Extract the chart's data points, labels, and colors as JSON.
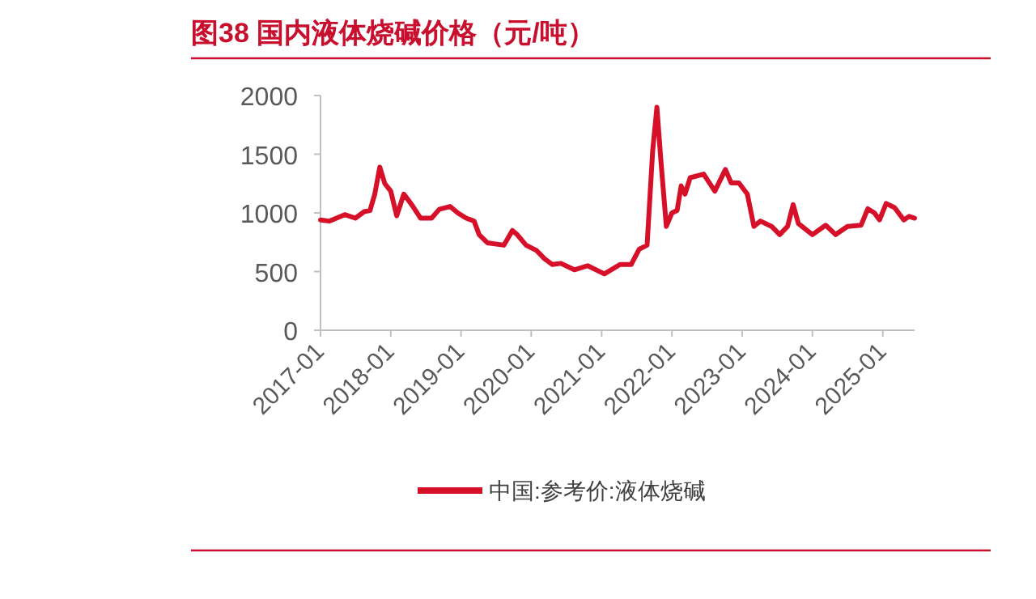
{
  "chart_data": {
    "type": "line",
    "title": "图38  国内液体烧碱价格（元/吨）",
    "xlim": [
      "2017-01-01",
      "2025-06-15"
    ],
    "xticks": [
      "2017-01",
      "2018-01",
      "2019-01",
      "2020-01",
      "2021-01",
      "2022-01",
      "2023-01",
      "2024-01",
      "2025-01"
    ],
    "ylim": [
      0,
      2000
    ],
    "yticks": [
      0,
      500,
      1000,
      1500,
      2000
    ],
    "grid": false,
    "legend": "bottom",
    "marker": "none",
    "line_style": "solid",
    "series": [
      {
        "name": "中国:参考价:液体烧碱",
        "color": "#d7102a",
        "x": [
          "2017-01-01",
          "2017-02-15",
          "2017-05-07",
          "2017-07-01",
          "2017-08-15",
          "2017-09-15",
          "2017-10-10",
          "2017-11-05",
          "2017-12-01",
          "2018-01-01",
          "2018-02-01",
          "2018-03-10",
          "2018-04-20",
          "2018-06-05",
          "2018-08-01",
          "2018-09-10",
          "2018-11-05",
          "2018-12-15",
          "2019-01-28",
          "2019-03-10",
          "2019-04-05",
          "2019-05-18",
          "2019-08-12",
          "2019-09-25",
          "2019-10-20",
          "2019-12-05",
          "2020-01-28",
          "2020-03-10",
          "2020-04-20",
          "2020-06-03",
          "2020-08-12",
          "2020-10-20",
          "2021-01-15",
          "2021-04-06",
          "2021-06-03",
          "2021-07-15",
          "2021-08-25",
          "2021-09-23",
          "2021-10-15",
          "2021-11-05",
          "2021-12-03",
          "2022-01-01",
          "2022-01-28",
          "2022-02-18",
          "2022-03-10",
          "2022-04-06",
          "2022-06-15",
          "2022-08-12",
          "2022-10-06",
          "2022-11-05",
          "2022-12-15",
          "2023-01-28",
          "2023-03-03",
          "2023-04-06",
          "2023-06-03",
          "2023-07-15",
          "2023-08-25",
          "2023-09-23",
          "2023-10-20",
          "2024-01-01",
          "2024-03-10",
          "2024-05-01",
          "2024-07-01",
          "2024-09-10",
          "2024-10-15",
          "2024-11-18",
          "2024-12-15",
          "2025-01-18",
          "2025-03-03",
          "2025-04-20",
          "2025-05-18",
          "2025-06-15"
        ],
        "values": [
          940,
          930,
          985,
          955,
          1010,
          1020,
          1160,
          1390,
          1250,
          1185,
          975,
          1160,
          1070,
          955,
          955,
          1030,
          1055,
          1000,
          955,
          930,
          815,
          745,
          725,
          850,
          815,
          725,
          680,
          610,
          560,
          570,
          515,
          550,
          480,
          560,
          560,
          690,
          725,
          1530,
          1900,
          1440,
          885,
          1000,
          1020,
          1230,
          1160,
          1300,
          1330,
          1185,
          1370,
          1255,
          1255,
          1160,
          885,
          930,
          885,
          815,
          885,
          1070,
          910,
          815,
          895,
          815,
          885,
          895,
          1035,
          1000,
          940,
          1080,
          1045,
          940,
          970,
          955
        ]
      }
    ]
  }
}
